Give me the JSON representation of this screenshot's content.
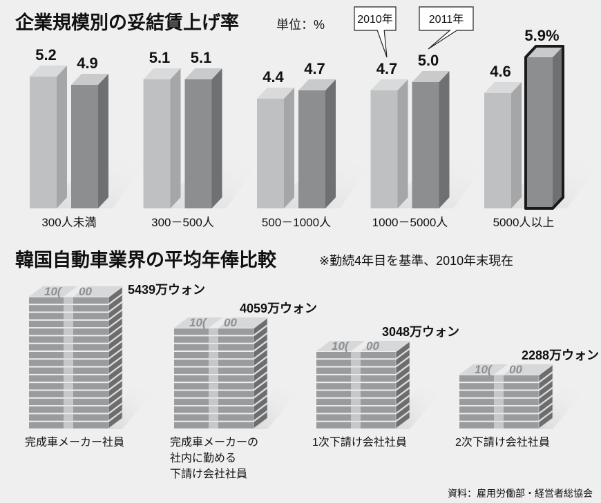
{
  "chart_data": [
    {
      "type": "bar",
      "title": "企業規模別の妥結賃上げ率",
      "unit_label": "単位：%",
      "categories": [
        "300人未満",
        "300－500人",
        "500－1000人",
        "1000－5000人",
        "5000人以上"
      ],
      "series": [
        {
          "name": "2010年",
          "values": [
            5.2,
            5.1,
            4.4,
            4.7,
            4.6
          ]
        },
        {
          "name": "2011年",
          "values": [
            4.9,
            5.1,
            4.7,
            5.0,
            5.9
          ]
        }
      ],
      "value_labels": [
        [
          "5.2",
          "4.9"
        ],
        [
          "5.1",
          "5.1"
        ],
        [
          "4.4",
          "4.7"
        ],
        [
          "4.7",
          "5.0"
        ],
        [
          "4.6",
          "5.9%"
        ]
      ],
      "highlight": {
        "category": "5000人以上",
        "series": "2011年"
      },
      "colors": {
        "2010年": "#bfc0c2",
        "2011年": "#8d8e90",
        "background": "#efefef"
      },
      "legend_placement": "callouts on 1000－5000人 bars",
      "grid": false
    },
    {
      "type": "bar",
      "style": "pictograph (stacks of banknotes)",
      "title": "韓国自動車業界の平均年俸比較",
      "note": "※勤続4年目を基準、2010年末現在",
      "categories": [
        [
          "完成車メーカー社員"
        ],
        [
          "完成車メーカーの",
          "社内に勤める",
          "下請け会社社員"
        ],
        [
          "1次下請け会社社員"
        ],
        [
          "2次下請け会社社員"
        ]
      ],
      "values": [
        5439,
        4059,
        3048,
        2288
      ],
      "value_labels": [
        "5439万ウォン",
        "4059万ウォン",
        "3048万ウォン",
        "2288万ウォン"
      ],
      "unit": "万ウォン",
      "banknote_text": [
        "10(",
        "00"
      ],
      "grid": false
    }
  ],
  "source": "資料：雇用労働部・経営者総協会"
}
